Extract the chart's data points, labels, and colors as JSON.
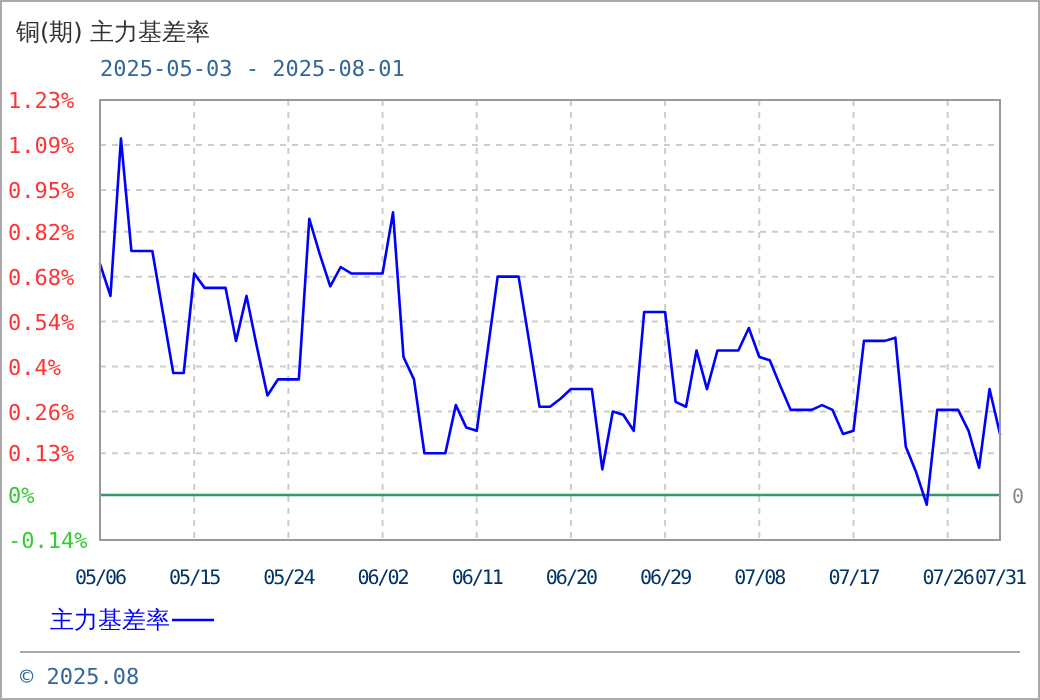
{
  "chart_data": {
    "type": "line",
    "title": "铜(期)  主力基差率",
    "subtitle": "2025-05-03 - 2025-08-01",
    "categories": [
      "05/06",
      null,
      null,
      null,
      null,
      null,
      null,
      null,
      null,
      "05/15",
      null,
      null,
      null,
      null,
      null,
      null,
      null,
      null,
      "05/24",
      null,
      null,
      null,
      null,
      null,
      null,
      null,
      null,
      "06/02",
      null,
      null,
      null,
      null,
      null,
      null,
      null,
      null,
      "06/11",
      null,
      null,
      null,
      null,
      null,
      null,
      null,
      null,
      "06/20",
      null,
      null,
      null,
      null,
      null,
      null,
      null,
      null,
      "06/29",
      null,
      null,
      null,
      null,
      null,
      null,
      null,
      null,
      "07/08",
      null,
      null,
      null,
      null,
      null,
      null,
      null,
      null,
      "07/17",
      null,
      null,
      null,
      null,
      null,
      null,
      null,
      null,
      "07/26",
      null,
      null,
      null,
      null,
      "07/31"
    ],
    "series": [
      {
        "name": "主力基差率",
        "color": "#0000ff",
        "values": [
          0.72,
          0.62,
          1.11,
          0.76,
          0.76,
          0.76,
          0.57,
          0.38,
          0.38,
          0.69,
          0.645,
          0.645,
          0.645,
          0.48,
          0.62,
          0.46,
          0.31,
          0.36,
          0.36,
          0.36,
          0.86,
          0.75,
          0.65,
          0.71,
          0.69,
          0.69,
          0.69,
          0.69,
          0.88,
          0.43,
          0.36,
          0.13,
          0.13,
          0.13,
          0.28,
          0.21,
          0.2,
          0.44,
          0.68,
          0.68,
          0.68,
          0.48,
          0.275,
          0.275,
          0.3,
          0.33,
          0.33,
          0.33,
          0.08,
          0.26,
          0.25,
          0.2,
          0.57,
          0.57,
          0.57,
          0.29,
          0.275,
          0.45,
          0.33,
          0.45,
          0.45,
          0.45,
          0.52,
          0.43,
          0.42,
          0.34,
          0.265,
          0.265,
          0.265,
          0.28,
          0.265,
          0.19,
          0.2,
          0.48,
          0.48,
          0.48,
          0.49,
          0.15,
          0.07,
          -0.03,
          0.265,
          0.265,
          0.265,
          0.2,
          0.085,
          0.33,
          0.19
        ]
      }
    ],
    "ylim": [
      -0.14,
      1.23
    ],
    "yticks": [
      {
        "value": 1.23,
        "label": "1.23%"
      },
      {
        "value": 1.09,
        "label": "1.09%"
      },
      {
        "value": 0.95,
        "label": "0.95%"
      },
      {
        "value": 0.82,
        "label": "0.82%"
      },
      {
        "value": 0.68,
        "label": "0.68%"
      },
      {
        "value": 0.54,
        "label": "0.54%"
      },
      {
        "value": 0.4,
        "label": "0.4%"
      },
      {
        "value": 0.26,
        "label": "0.26%"
      },
      {
        "value": 0.13,
        "label": "0.13%"
      },
      {
        "value": 0,
        "label": "0%"
      },
      {
        "value": -0.14,
        "label": "-0.14%"
      }
    ],
    "ref_lines": [
      {
        "axis": "y",
        "value": 0,
        "label": "0",
        "color": "#339966"
      }
    ],
    "grid": true,
    "legend": "bottom left",
    "line_style": "solid",
    "marker": "none",
    "annotations": [
      "© 2025.08"
    ]
  }
}
